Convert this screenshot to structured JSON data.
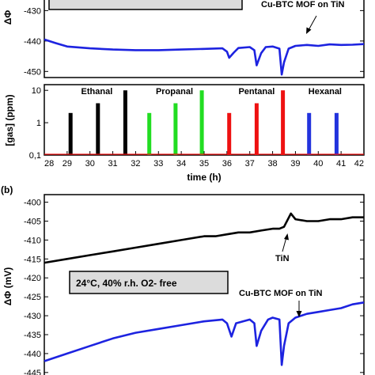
{
  "chart_data": [
    {
      "type": "line",
      "panel": "a-top",
      "ylabel": "ΔΦ",
      "xlim": [
        28,
        42
      ],
      "ylim": [
        -452,
        -426
      ],
      "y_ticks": [
        "-430",
        "-440",
        "-450"
      ],
      "annotation": "Cu-BTC MOF on TiN",
      "series": [
        {
          "color": "#1d23e0",
          "x": [
            28.0,
            28.5,
            29.0,
            30.0,
            31.0,
            32.0,
            33.0,
            34.0,
            35.0,
            35.8,
            36.0,
            36.1,
            36.3,
            36.5,
            37.0,
            37.2,
            37.3,
            37.5,
            37.7,
            38.0,
            38.3,
            38.4,
            38.5,
            38.7,
            39.0,
            39.5,
            40.0,
            40.5,
            41.0,
            41.5,
            42.0
          ],
          "y": [
            -439.5,
            -440.7,
            -441.8,
            -442.4,
            -442.8,
            -443.0,
            -443.0,
            -442.8,
            -442.6,
            -442.4,
            -443.5,
            -445.5,
            -443.8,
            -442.3,
            -442.0,
            -443.0,
            -448.0,
            -444.0,
            -442.0,
            -441.8,
            -442.5,
            -451.0,
            -447.0,
            -442.5,
            -441.6,
            -441.3,
            -441.6,
            -441.1,
            -441.3,
            -441.2,
            -441.0
          ]
        }
      ]
    },
    {
      "type": "bar",
      "panel": "a-bottom",
      "xlabel": "time (h)",
      "ylabel": "[gas] (ppm)",
      "yscale": "log",
      "xlim": [
        28,
        42
      ],
      "ylim": [
        0.1,
        15
      ],
      "x_ticks": [
        "28",
        "29",
        "30",
        "31",
        "32",
        "33",
        "34",
        "35",
        "36",
        "37",
        "38",
        "39",
        "40",
        "41",
        "42"
      ],
      "y_ticks": [
        "0,1",
        "1",
        "10"
      ],
      "groups": [
        {
          "name": "Ethanal",
          "color": "#000000",
          "label_x": 30.3,
          "x": [
            29.15,
            30.35,
            31.55
          ],
          "values": [
            2,
            4,
            10
          ]
        },
        {
          "name": "Propanal",
          "color": "#22dd22",
          "label_x": 33.7,
          "x": [
            32.6,
            33.75,
            34.9
          ],
          "values": [
            2,
            4,
            10
          ]
        },
        {
          "name": "Pentanal",
          "color": "#ee1111",
          "label_x": 37.3,
          "x": [
            36.1,
            37.3,
            38.45
          ],
          "values": [
            2,
            4,
            10
          ]
        },
        {
          "name": "Hexanal",
          "color": "#2233dd",
          "label_x": 40.3,
          "x": [
            39.6,
            40.8
          ],
          "values": [
            2,
            2
          ]
        }
      ]
    },
    {
      "type": "line",
      "panel": "b",
      "panel_label": "(b)",
      "ylabel": "ΔΦ (mV)",
      "xlim": [
        28,
        42
      ],
      "ylim": [
        -446.5,
        -398
      ],
      "y_ticks": [
        "-400",
        "-405",
        "-410",
        "-415",
        "-420",
        "-425",
        "-430",
        "-435",
        "-440",
        "-445"
      ],
      "condition_box": "24°C, 40% r.h. O2- free",
      "annotations": [
        "TiN",
        "Cu-BTC MOF on TiN"
      ],
      "series": [
        {
          "name": "TiN",
          "color": "#000000",
          "x": [
            28.0,
            29.0,
            30.0,
            31.0,
            32.0,
            33.0,
            34.0,
            35.0,
            35.5,
            36.0,
            36.5,
            37.0,
            37.5,
            38.0,
            38.3,
            38.5,
            38.8,
            39.0,
            39.5,
            40.0,
            40.5,
            41.0,
            41.5,
            42.0
          ],
          "y": [
            -416.0,
            -415.0,
            -414.0,
            -413.0,
            -412.0,
            -411.0,
            -410.0,
            -409.0,
            -409.0,
            -408.5,
            -408.0,
            -408.0,
            -407.5,
            -407.0,
            -407.0,
            -406.5,
            -403.0,
            -404.5,
            -405.0,
            -405.0,
            -404.5,
            -404.5,
            -404.0,
            -404.0
          ]
        },
        {
          "name": "Cu-BTC MOF on TiN",
          "color": "#1d23e0",
          "x": [
            28.0,
            29.0,
            30.0,
            31.0,
            32.0,
            33.0,
            34.0,
            35.0,
            35.8,
            36.0,
            36.2,
            36.4,
            37.0,
            37.2,
            37.3,
            37.5,
            37.8,
            38.0,
            38.3,
            38.4,
            38.5,
            38.7,
            39.0,
            39.5,
            40.0,
            40.5,
            41.0,
            41.5,
            42.0
          ],
          "y": [
            -442.0,
            -440.0,
            -438.0,
            -436.0,
            -434.5,
            -433.5,
            -432.5,
            -431.5,
            -431.0,
            -432.0,
            -435.5,
            -432.0,
            -431.0,
            -432.0,
            -438.0,
            -434.0,
            -431.0,
            -430.5,
            -431.0,
            -443.0,
            -438.0,
            -432.0,
            -430.5,
            -429.5,
            -429.0,
            -428.5,
            -428.0,
            -427.0,
            -426.5
          ]
        }
      ]
    }
  ]
}
